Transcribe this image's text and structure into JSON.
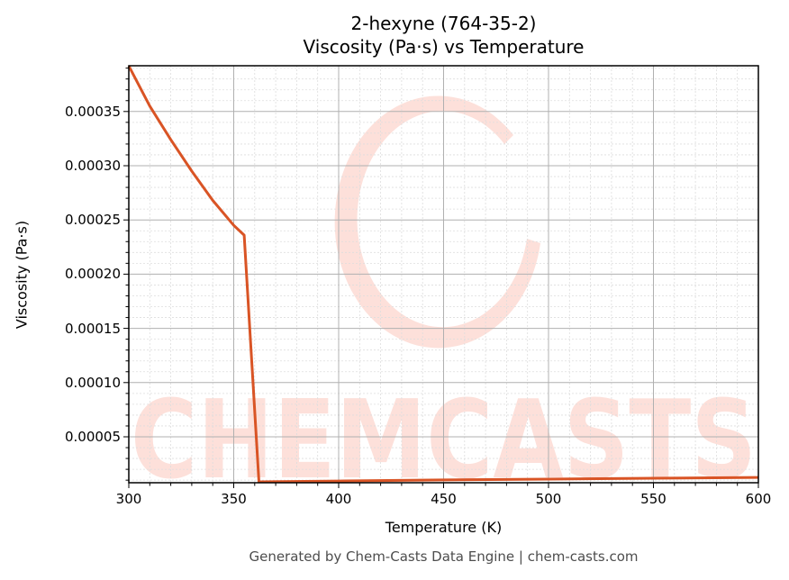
{
  "chart_data": {
    "type": "line",
    "title": "2-hexyne (764-35-2)",
    "subtitle": "Viscosity (Pa·s) vs Temperature",
    "xlabel": "Temperature (K)",
    "ylabel": "Viscosity (Pa·s)",
    "xlim": [
      300,
      600
    ],
    "ylim": [
      7.5e-06,
      0.000392
    ],
    "x_ticks": [
      "300",
      "350",
      "400",
      "450",
      "500",
      "550",
      "600"
    ],
    "y_ticks": [
      "0.00005",
      "0.00010",
      "0.00015",
      "0.00020",
      "0.00025",
      "0.00030",
      "0.00035"
    ],
    "grid": true,
    "minor_grid": true,
    "legend": null,
    "series": [
      {
        "name": "Viscosity",
        "color": "#d95425",
        "x": [
          300,
          310,
          320,
          330,
          340,
          350,
          355,
          362,
          400,
          450,
          500,
          550,
          600
        ],
        "y": [
          0.000392,
          0.000355,
          0.000324,
          0.000295,
          0.000268,
          0.000245,
          0.000236,
          8.5e-06,
          9.2e-06,
          1.02e-05,
          1.1e-05,
          1.18e-05,
          1.25e-05
        ]
      }
    ],
    "watermark": "CHEMCASTS",
    "footer": "Generated by Chem-Casts Data Engine | chem-casts.com"
  },
  "colors": {
    "line": "#d95425",
    "watermark": "#fde0da",
    "grid_major": "#b0b0b0",
    "grid_minor": "#dddddd",
    "footer_text": "#4d4d4d"
  }
}
